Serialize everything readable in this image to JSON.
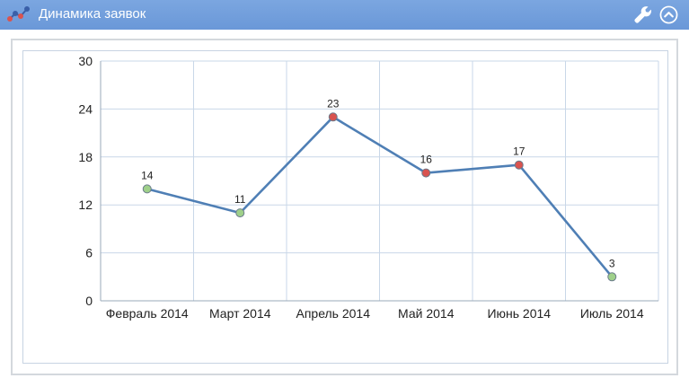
{
  "header": {
    "title": "Динамика заявок",
    "icon": "line-chart-icon",
    "settings_icon": "wrench-icon",
    "collapse_icon": "chevron-up-circle-icon",
    "background": "#6f9cdb"
  },
  "chart_data": {
    "type": "line",
    "categories": [
      "Февраль 2014",
      "Март 2014",
      "Апрель 2014",
      "Май 2014",
      "Июнь 2014",
      "Июль 2014"
    ],
    "series": [
      {
        "values": [
          14,
          11,
          23,
          16,
          17,
          3
        ],
        "color": "#4f7fb5",
        "point_colors": [
          "#9fd08a",
          "#9fd08a",
          "#d9534f",
          "#d9534f",
          "#d9534f",
          "#9fd08a"
        ]
      }
    ],
    "yticks": [
      0,
      6,
      12,
      18,
      24,
      30
    ],
    "ylim": [
      0,
      30
    ],
    "grid": true,
    "data_labels": true
  }
}
